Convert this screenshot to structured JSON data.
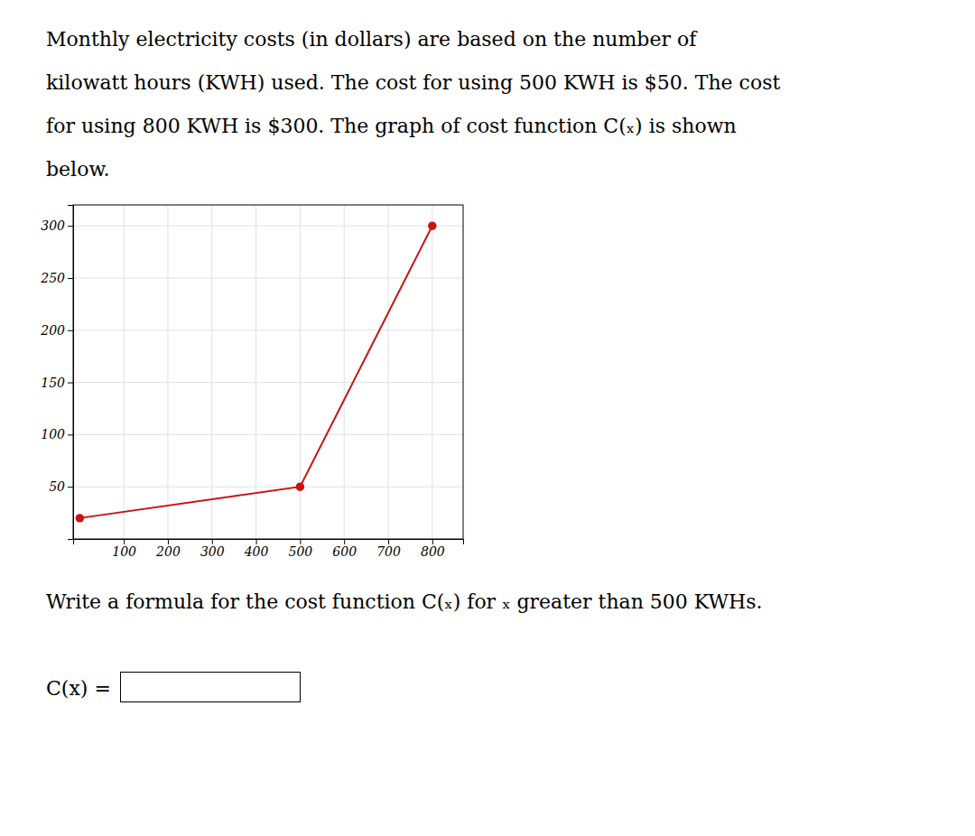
{
  "chart_data": {
    "type": "line",
    "x": [
      0,
      500,
      800
    ],
    "values": [
      20,
      50,
      300
    ],
    "color": "#cc1111",
    "marker": "circle",
    "xlim": [
      -15,
      870
    ],
    "ylim": [
      0,
      320
    ],
    "xticks": [
      100,
      200,
      300,
      400,
      500,
      600,
      700,
      800
    ],
    "yticks": [
      50,
      100,
      150,
      200,
      250,
      300
    ],
    "grid": true,
    "annotations": [
      "Monthly electricity costs (in dollars) are based on the number of",
      "kilowatt hours (KWH) used. The cost for using 500 KWH is $50. The cost",
      "for using 800 KWH is $300. The graph of cost function C(ₓ) is shown",
      "below.",
      "Write a formula for the cost function C(ₓ) for ₓ greater than 500 KWHs.",
      "C(x) ="
    ]
  }
}
